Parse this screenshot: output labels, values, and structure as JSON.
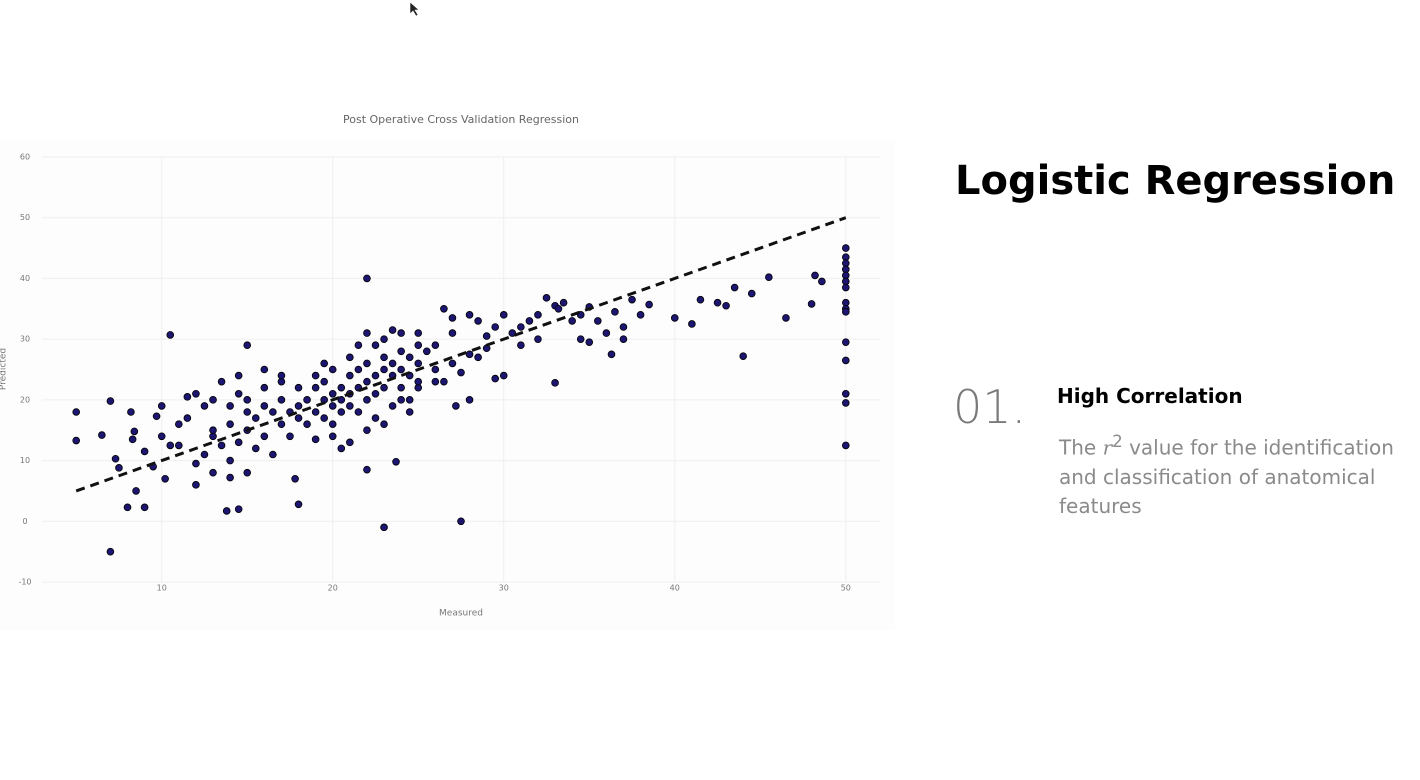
{
  "chart_data": {
    "type": "scatter",
    "title": "Post Operative Cross Validation Regression",
    "x_label": "Measured",
    "y_label": "Predicted",
    "xlim": [
      3,
      52
    ],
    "ylim": [
      -10,
      60
    ],
    "xticks": [
      10,
      20,
      30,
      40,
      50
    ],
    "yticks": [
      -10,
      0,
      10,
      20,
      30,
      40,
      50,
      60
    ],
    "grid": true,
    "series": [
      {
        "type": "scatter",
        "color": "#1c1670",
        "x": [
          22,
          10.5,
          15,
          7,
          23,
          27.5,
          8,
          9,
          13.8,
          14.5,
          18,
          17.8,
          22,
          23.7,
          44,
          46.5,
          48,
          48.2,
          48.6,
          43.5,
          42.5,
          41.5,
          45.5,
          44.5,
          43,
          41,
          40,
          38.5,
          36.3,
          35,
          33,
          27.2,
          28,
          5,
          5,
          6.5,
          7,
          7.3,
          7.5,
          8.5,
          9.5,
          10.2,
          10.5,
          8.3,
          8.4,
          8.2,
          9.7,
          50,
          50,
          50,
          50,
          50,
          50,
          50,
          50,
          50,
          50,
          50,
          50,
          50,
          50,
          50,
          26,
          26.5,
          27,
          28,
          28.5,
          29,
          29.5,
          30,
          30.5,
          31,
          31.5,
          32,
          32.5,
          33,
          33.5,
          33.2,
          34,
          34.5,
          35,
          35.5,
          36,
          36.5,
          37,
          37.5,
          38,
          29,
          28.5,
          30,
          29.5,
          27.5,
          28,
          26,
          25.5,
          27,
          31,
          32,
          34.5,
          37,
          25,
          26,
          24.5,
          26.5,
          27,
          11,
          11.5,
          12,
          12.5,
          13,
          13,
          13.5,
          13.5,
          14,
          14,
          14,
          14.5,
          14.5,
          15,
          15,
          15,
          15.5,
          15.5,
          16,
          16,
          16,
          16.5,
          16.5,
          17,
          17,
          17,
          17.5,
          17.5,
          18,
          18,
          12,
          12.5,
          13,
          14,
          15,
          11,
          10,
          10,
          12,
          9,
          11.5,
          13,
          14.5,
          16,
          17,
          18.5,
          18.5,
          19,
          19,
          19,
          19.5,
          19.5,
          19.5,
          20,
          20,
          20,
          20,
          20.5,
          20.5,
          20.5,
          21,
          21,
          21,
          21,
          21.5,
          21.5,
          21.5,
          22,
          22,
          22,
          22.5,
          22.5,
          22.5,
          23,
          23,
          23,
          23,
          23.5,
          23.5,
          23.5,
          24,
          24,
          24,
          24,
          24.5,
          24.5,
          25,
          25,
          25,
          22.5,
          23,
          21,
          20,
          19,
          24,
          25,
          18,
          19.5,
          21.5,
          22,
          23.5,
          20.5,
          24.5,
          22
        ],
        "values": [
          40,
          30.7,
          29,
          -5,
          -1,
          0,
          2.3,
          2.3,
          1.7,
          2,
          2.8,
          7,
          8.5,
          9.8,
          27.2,
          33.5,
          35.8,
          40.5,
          39.5,
          38.5,
          36,
          36.5,
          40.2,
          37.5,
          35.5,
          32.5,
          33.5,
          35.7,
          27.5,
          29.5,
          22.8,
          19,
          20,
          18,
          13.3,
          14.2,
          19.8,
          10.3,
          8.8,
          5,
          9,
          7,
          12.5,
          13.5,
          14.8,
          18,
          17.3,
          45,
          43.5,
          42.5,
          41.5,
          40.5,
          39.5,
          38.5,
          36,
          35,
          34.5,
          29.5,
          26.5,
          21,
          19.5,
          12.5,
          25,
          35,
          33.5,
          34,
          33,
          30.5,
          32,
          34,
          31,
          32,
          33,
          34,
          36.8,
          35.5,
          36,
          35,
          33,
          34,
          35.3,
          33,
          31,
          34.5,
          32,
          36.5,
          34,
          28.5,
          27,
          24,
          23.5,
          24.5,
          27.5,
          29,
          28,
          31,
          29,
          30,
          30,
          30,
          22,
          23,
          20,
          23,
          26,
          12.5,
          17,
          21,
          19,
          20,
          14,
          23,
          12.5,
          19,
          16,
          10,
          21,
          13,
          18,
          20,
          15,
          17,
          12,
          19,
          22,
          14,
          18,
          11,
          20,
          16,
          23,
          18,
          14,
          17,
          22,
          9.5,
          11,
          8,
          7.2,
          8,
          16,
          19,
          14,
          6,
          11.5,
          20.5,
          15,
          24,
          25,
          24,
          20,
          16,
          22,
          18,
          24,
          20,
          17,
          23,
          21,
          19,
          16,
          25,
          22,
          18,
          20,
          24,
          21,
          19,
          27,
          22,
          25,
          18,
          23,
          20,
          26,
          24,
          21,
          29,
          25,
          22,
          27,
          30,
          26,
          24,
          19,
          28,
          25,
          22,
          31,
          27,
          24,
          29,
          26,
          31,
          17,
          16,
          13,
          14,
          13.5,
          20,
          23,
          19,
          26,
          29,
          31,
          31.5,
          12,
          18,
          15
        ]
      },
      {
        "type": "line",
        "color": "#111111",
        "line_style": "dashed",
        "x": [
          5,
          50
        ],
        "values": [
          5,
          50
        ]
      }
    ]
  },
  "slide": {
    "heading": "Logistic Regression",
    "number": "01.",
    "point_title": "High Correlation",
    "description": {
      "before": "The",
      "variable": "r",
      "exponent": "2",
      "after": "value for the identification and classification of anatomical features"
    }
  }
}
